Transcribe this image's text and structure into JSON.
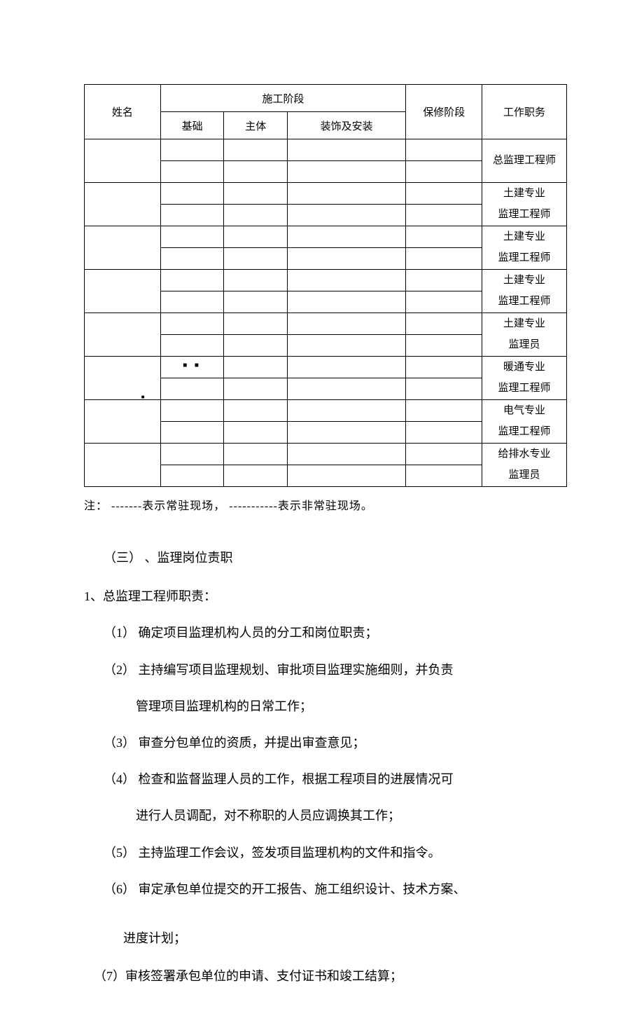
{
  "table": {
    "header": {
      "name": "姓名",
      "stage": "施工阶段",
      "sub_jc": "基础",
      "sub_zt": "主体",
      "sub_zs": "装饰及安装",
      "warranty": "保修阶段",
      "job": "工作职务"
    },
    "rows": [
      {
        "job1": "总监理工程师",
        "job2": ""
      },
      {
        "job1": "土建专业",
        "job2": "监理工程师"
      },
      {
        "job1": "土建专业",
        "job2": "监理工程师"
      },
      {
        "job1": "土建专业",
        "job2": "监理工程师"
      },
      {
        "job1": "土建专业",
        "job2": "监理员"
      },
      {
        "job1": "暖通专业",
        "job2": "监理工程师",
        "marks": "■ ■",
        "mark_low": "■"
      },
      {
        "job1": "电气专业",
        "job2": "监理工程师"
      },
      {
        "job1": "给排水专业",
        "job2": "监理员"
      }
    ]
  },
  "note": "注：  -------表示常驻现场，  -----------表示非常驻现场。",
  "section3_title": "（三） 、监理岗位责职",
  "item1_head": "1、总监理工程师职责：",
  "item1_1": "（1） 确定项目监理机构人员的分工和岗位职责；",
  "item1_2": "（2） 主持编写项目监理规划、审批项目监理实施细则，并负责",
  "item1_2b": "管理项目监理机构的日常工作；",
  "item1_3": "（3） 审查分包单位的资质，并提出审查意见；",
  "item1_4": "（4） 检查和监督监理人员的工作，根据工程项目的进展情况可",
  "item1_4b": "进行人员调配，对不称职的人员应调换其工作；",
  "item1_5": "（5） 主持监理工作会议，签发项目监理机构的文件和指令。",
  "item1_6": "（6） 审定承包单位提交的开工报告、施工组织设计、技术方案、",
  "item1_6b": "进度计划；",
  "item1_7": "（7）审核签署承包单位的申请、支付证书和竣工结算；"
}
